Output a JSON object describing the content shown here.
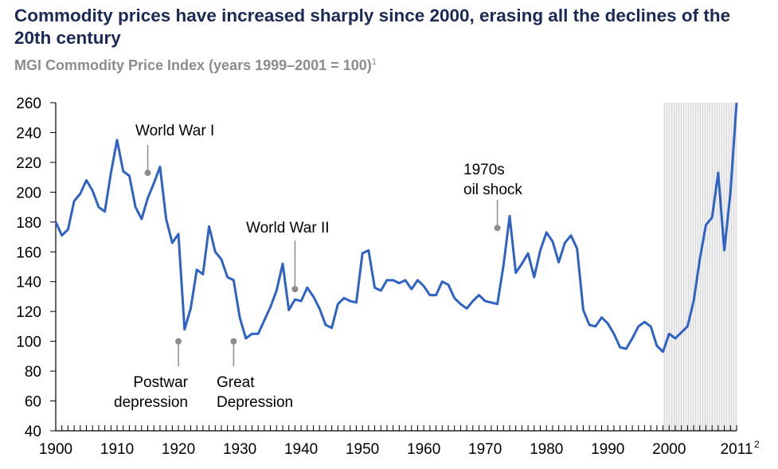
{
  "title": "Commodity prices have increased sharply since 2000, erasing all the declines of the 20th century",
  "subtitle": "MGI Commodity Price Index (years 1999–2001 = 100)",
  "subtitle_footnote": "1",
  "chart_data": {
    "type": "line",
    "title": "Commodity prices have increased sharply since 2000, erasing all the declines of the 20th century",
    "xlabel": "",
    "ylabel": "",
    "xlim": [
      1900,
      2011
    ],
    "ylim": [
      40,
      260
    ],
    "grid": false,
    "y_ticks": [
      40,
      60,
      80,
      100,
      120,
      140,
      160,
      180,
      200,
      220,
      240,
      260
    ],
    "x_ticks": [
      "1900",
      "1910",
      "1920",
      "1930",
      "1940",
      "1950",
      "1960",
      "1970",
      "1980",
      "1990",
      "2000",
      "2011"
    ],
    "x_last_footnote": "2",
    "shaded_range": [
      1999,
      2011
    ],
    "line_color": "#2e62c4",
    "x": [
      1900,
      1901,
      1902,
      1903,
      1904,
      1905,
      1906,
      1907,
      1908,
      1909,
      1910,
      1911,
      1912,
      1913,
      1914,
      1915,
      1916,
      1917,
      1918,
      1919,
      1920,
      1921,
      1922,
      1923,
      1924,
      1925,
      1926,
      1927,
      1928,
      1929,
      1930,
      1931,
      1932,
      1933,
      1934,
      1935,
      1936,
      1937,
      1938,
      1939,
      1940,
      1941,
      1942,
      1943,
      1944,
      1945,
      1946,
      1947,
      1948,
      1949,
      1950,
      1951,
      1952,
      1953,
      1954,
      1955,
      1956,
      1957,
      1958,
      1959,
      1960,
      1961,
      1962,
      1963,
      1964,
      1965,
      1966,
      1967,
      1968,
      1969,
      1970,
      1971,
      1972,
      1973,
      1974,
      1975,
      1976,
      1977,
      1978,
      1979,
      1980,
      1981,
      1982,
      1983,
      1984,
      1985,
      1986,
      1987,
      1988,
      1989,
      1990,
      1991,
      1992,
      1993,
      1994,
      1995,
      1996,
      1997,
      1998,
      1999,
      2000,
      2001,
      2002,
      2003,
      2004,
      2005,
      2006,
      2007,
      2008,
      2009,
      2010,
      2011
    ],
    "values": [
      180,
      171,
      175,
      194,
      199,
      208,
      201,
      190,
      187,
      213,
      235,
      214,
      211,
      190,
      182,
      196,
      206,
      217,
      182,
      166,
      172,
      108,
      122,
      148,
      145,
      177,
      160,
      155,
      143,
      141,
      116,
      102,
      105,
      105,
      114,
      123,
      134,
      152,
      121,
      128,
      127,
      136,
      130,
      122,
      111,
      109,
      125,
      129,
      127,
      126,
      159,
      161,
      136,
      134,
      141,
      141,
      139,
      141,
      135,
      141,
      137,
      131,
      131,
      140,
      138,
      129,
      125,
      122,
      127,
      131,
      127,
      126,
      125,
      151,
      184,
      146,
      152,
      159,
      143,
      161,
      173,
      167,
      153,
      166,
      171,
      162,
      121,
      111,
      110,
      116,
      112,
      105,
      96,
      95,
      102,
      110,
      113,
      110,
      97,
      93,
      105,
      102,
      106,
      110,
      127,
      155,
      178,
      183,
      213,
      161,
      200,
      260
    ],
    "annotations": [
      {
        "lines": [
          "World War I"
        ],
        "year": 1915,
        "value": 213
      },
      {
        "lines": [
          "Postwar",
          "depression"
        ],
        "year": 1920,
        "value": 100
      },
      {
        "lines": [
          "Great",
          "Depression"
        ],
        "year": 1929,
        "value": 100
      },
      {
        "lines": [
          "World War II"
        ],
        "year": 1939,
        "value": 135
      },
      {
        "lines": [
          "1970s",
          "oil shock"
        ],
        "year": 1972,
        "value": 176
      }
    ]
  }
}
